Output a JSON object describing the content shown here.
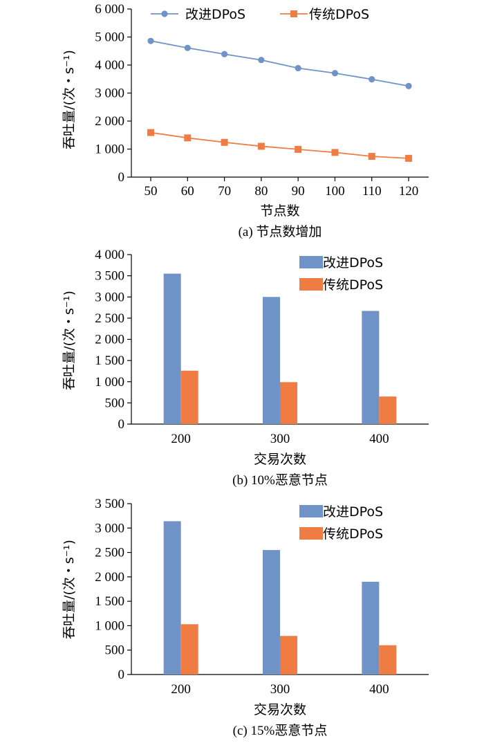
{
  "colors": {
    "improved": "#6f93c6",
    "traditional": "#ef7c42",
    "axis": "#000000"
  },
  "chart_data": [
    {
      "type": "line",
      "caption": "(a) 节点数增加",
      "xlabel": "节点数",
      "ylabel": "吞吐量/(次・s⁻¹)",
      "x": [
        50,
        60,
        70,
        80,
        90,
        100,
        110,
        120
      ],
      "ylim": [
        0,
        6000
      ],
      "yticks": [
        0,
        1000,
        2000,
        3000,
        4000,
        5000,
        6000
      ],
      "ytick_labels": [
        "0",
        "1 000",
        "2 000",
        "3 000",
        "4 000",
        "5 000",
        "6 000"
      ],
      "legend_position": "top",
      "series": [
        {
          "name": "改进DPoS",
          "marker": "circle",
          "values": [
            4860,
            4610,
            4390,
            4180,
            3890,
            3710,
            3490,
            3250
          ]
        },
        {
          "name": "传统DPoS",
          "marker": "square",
          "values": [
            1590,
            1400,
            1240,
            1100,
            990,
            880,
            740,
            670
          ]
        }
      ]
    },
    {
      "type": "bar",
      "caption": "(b) 10%恶意节点",
      "xlabel": "交易次数",
      "ylabel": "吞吐量/(次・s⁻¹)",
      "categories": [
        "200",
        "300",
        "400"
      ],
      "ylim": [
        0,
        4000
      ],
      "yticks": [
        0,
        500,
        1000,
        1500,
        2000,
        2500,
        3000,
        3500,
        4000
      ],
      "ytick_labels": [
        "0",
        "500",
        "1 000",
        "1 500",
        "2 000",
        "2 500",
        "3 000",
        "3 500",
        "4 000"
      ],
      "legend_position": "top-right",
      "series": [
        {
          "name": "改进DPoS",
          "values": [
            3550,
            3000,
            2670
          ]
        },
        {
          "name": "传统DPoS",
          "values": [
            1260,
            990,
            650
          ]
        }
      ]
    },
    {
      "type": "bar",
      "caption": "(c) 15%恶意节点",
      "xlabel": "交易次数",
      "ylabel": "吞吐量/(次・s⁻¹)",
      "categories": [
        "200",
        "300",
        "400"
      ],
      "ylim": [
        0,
        3500
      ],
      "yticks": [
        0,
        500,
        1000,
        1500,
        2000,
        2500,
        3000,
        3500
      ],
      "ytick_labels": [
        "0",
        "500",
        "1 000",
        "1 500",
        "2 000",
        "2 500",
        "3 000",
        "3 500"
      ],
      "legend_position": "top-right",
      "series": [
        {
          "name": "改进DPoS",
          "values": [
            3140,
            2550,
            1900
          ]
        },
        {
          "name": "传统DPoS",
          "values": [
            1030,
            790,
            600
          ]
        }
      ]
    }
  ]
}
